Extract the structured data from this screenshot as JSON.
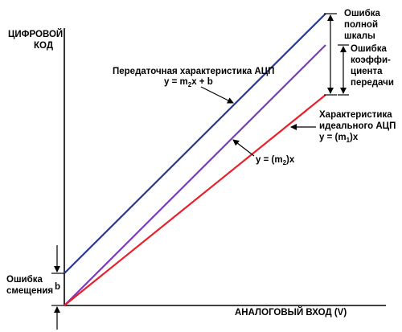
{
  "labels": {
    "y_axis_line1": "ЦИФРОВОЙ",
    "y_axis_line2": "КОД",
    "x_axis": "АНАЛОГОВЫЙ ВХОД (V)",
    "adc_line1": "Передаточная характеристика АЦП",
    "adc_eq_prefix": "y = m",
    "adc_eq_sub": "2",
    "adc_eq_suffix": "x + b",
    "ideal_line1": "Характеристика",
    "ideal_line2": "идеального АЦП",
    "ideal_eq_prefix": "y = (m",
    "ideal_eq_sub": "1",
    "ideal_eq_suffix": ")x",
    "mid_eq_prefix": "y = (m",
    "mid_eq_sub": "2",
    "mid_eq_suffix": ")x",
    "full_scale_line1": "Ошибка",
    "full_scale_line2": "полной",
    "full_scale_line3": "шкалы",
    "gain_line1": "Ошибка",
    "gain_line2": "коэффи-",
    "gain_line3": "циента",
    "gain_line4": "передачи",
    "offset_line1": "Ошибка",
    "offset_line2": "смещения",
    "offset_symbol": "b"
  },
  "colors": {
    "adc_line": "#2b3a8f",
    "mid_line": "#7a3fb5",
    "ideal_line": "#e8202a",
    "axis": "#000000"
  }
}
